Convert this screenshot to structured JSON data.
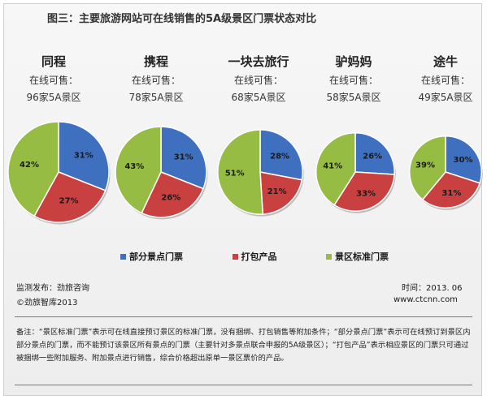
{
  "title": "图三：主要旅游网站可在线销售的5A级景区门票状态对比",
  "chart_data": {
    "type": "pie",
    "title": "图三：主要旅游网站可在线销售的5A级景区门票状态对比",
    "series_names": [
      "部分景点门票",
      "打包产品",
      "景区标准门票"
    ],
    "series_colors": [
      "#3f6fbf",
      "#c84040",
      "#96bc44"
    ],
    "pies": [
      {
        "name": "同程",
        "subtitle": "在线可售：",
        "count_label": "96家5A景区",
        "count": 96,
        "values": [
          31,
          27,
          42
        ],
        "labels": [
          "31%",
          "27%",
          "42%"
        ]
      },
      {
        "name": "携程",
        "subtitle": "在线可售：",
        "count_label": "78家5A景区",
        "count": 78,
        "values": [
          31,
          26,
          43
        ],
        "labels": [
          "31%",
          "26%",
          "43%"
        ]
      },
      {
        "name": "一块去旅行",
        "subtitle": "在线可售：",
        "count_label": "68家5A景区",
        "count": 68,
        "values": [
          28,
          21,
          51
        ],
        "labels": [
          "28%",
          "21%",
          "51%"
        ]
      },
      {
        "name": "驴妈妈",
        "subtitle": "在线可售：",
        "count_label": "58家5A景区",
        "count": 58,
        "values": [
          26,
          33,
          41
        ],
        "labels": [
          "26%",
          "33%",
          "41%"
        ]
      },
      {
        "name": "途牛",
        "subtitle": "在线可售：",
        "count_label": "49家5A景区",
        "count": 49,
        "values": [
          30,
          31,
          39
        ],
        "labels": [
          "30%",
          "31%",
          "39%"
        ]
      }
    ]
  },
  "legend": [
    "部分景点门票",
    "打包产品",
    "景区标准门票"
  ],
  "footer": {
    "monitor": "监测发布：劲旅咨询",
    "copyright": "©劲旅智库2013",
    "time": "时间：2013. 06",
    "site": "www.ctcnn.com"
  },
  "note": "备注：“景区标准门票”表示可在线直接预订景区的标准门票，没有捆绑、打包销售等附加条件；“部分景点门票”表示可在线预订到景区内部分景点的门票，而不能预订该景区所有景点的门票（主要针对多景点联合申报的5A级景区）；“打包产品”表示相应景区的门票只可通过被捆绑一些附加服务、附加景点进行销售，综合价格超出原单一景区票价的产品。"
}
